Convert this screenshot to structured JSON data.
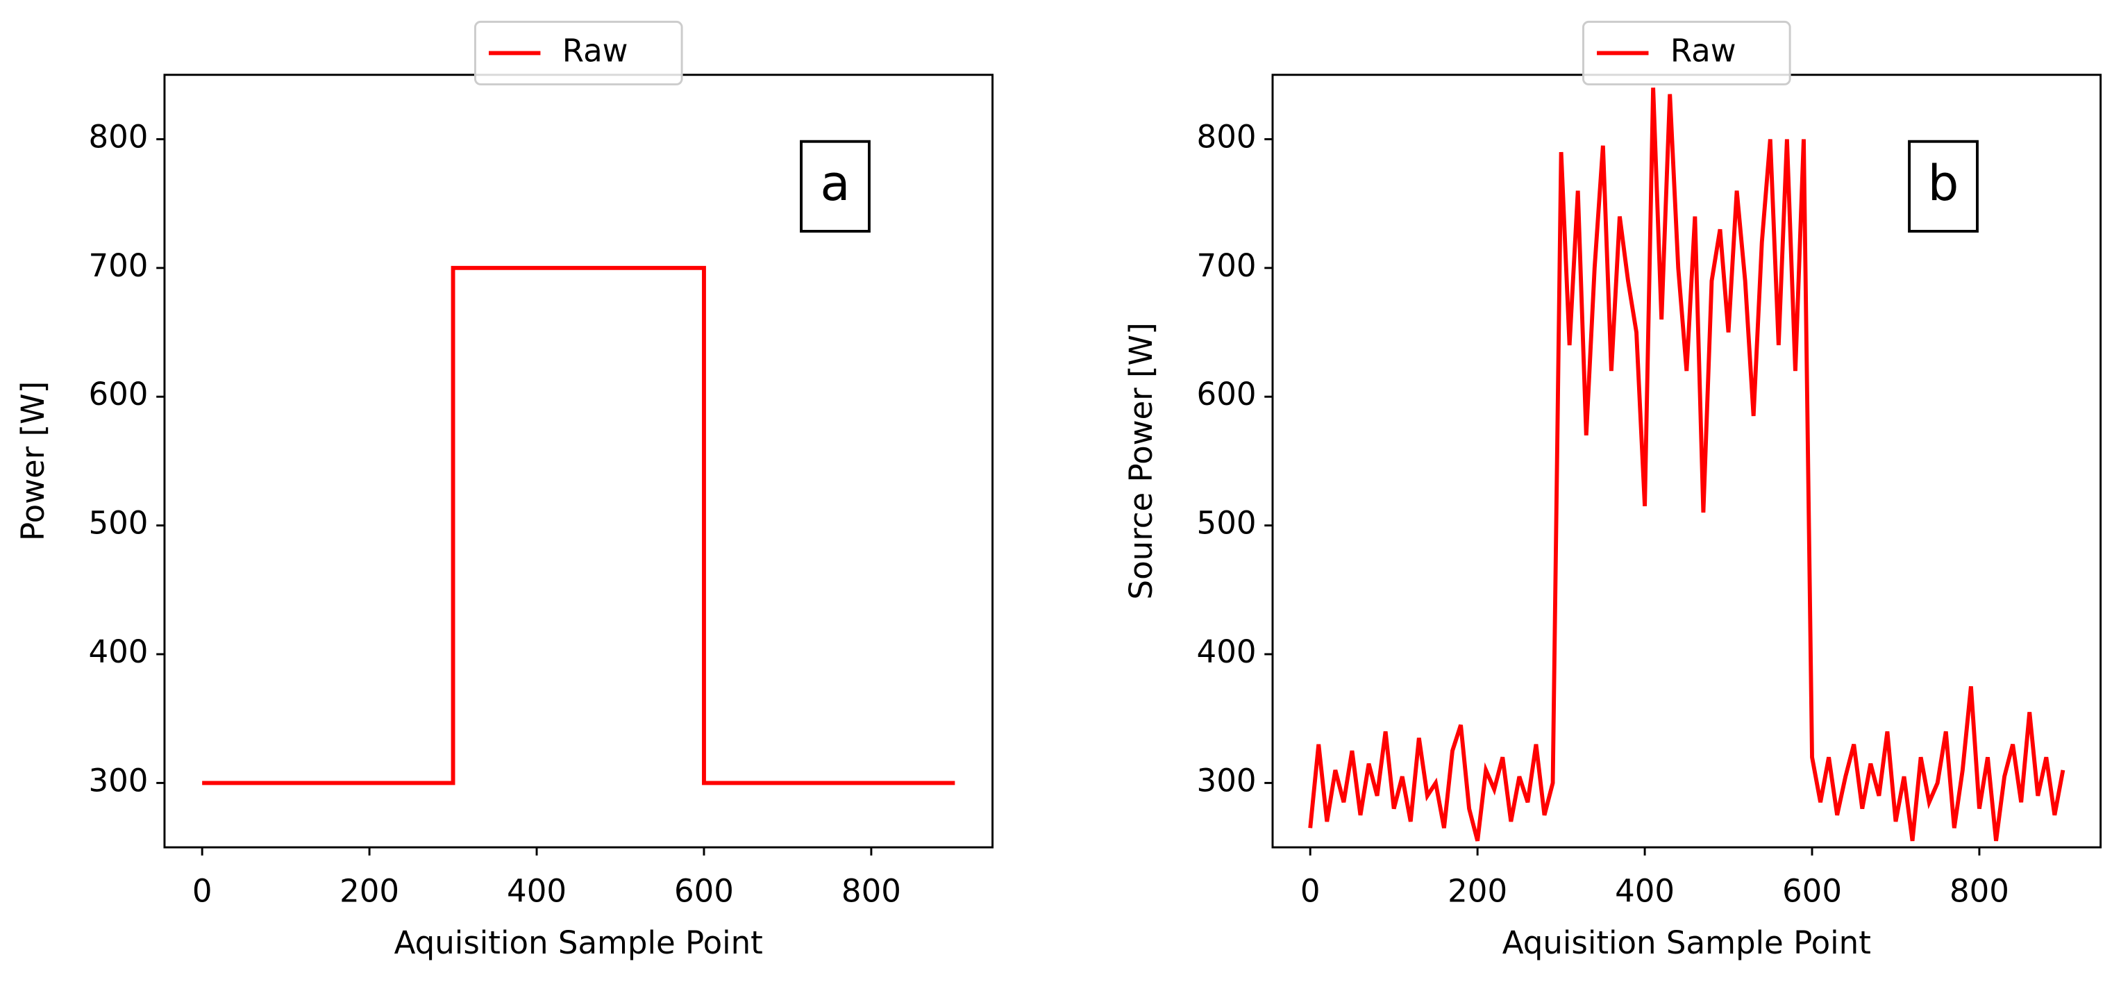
{
  "chart_data": [
    {
      "type": "line",
      "annotation": "a",
      "x_label": "Aquisition Sample Point",
      "y_label": "Power [W]",
      "x": [
        0,
        300,
        300,
        600,
        600,
        900
      ],
      "series": [
        {
          "name": "Raw",
          "color": "#ff0000",
          "values": [
            300,
            300,
            700,
            700,
            300,
            300
          ]
        }
      ],
      "xlim": [
        -45,
        945
      ],
      "xticks": [
        0,
        200,
        400,
        600,
        800
      ],
      "ylim": [
        250,
        850
      ],
      "yticks": [
        300,
        400,
        500,
        600,
        700,
        800
      ],
      "legend": "upper center"
    },
    {
      "type": "line",
      "annotation": "b",
      "x_label": "Aquisition Sample Point",
      "y_label": "Source Power [W]",
      "x": [
        0,
        10,
        20,
        30,
        40,
        50,
        60,
        70,
        80,
        90,
        100,
        110,
        120,
        130,
        140,
        150,
        160,
        170,
        180,
        190,
        200,
        210,
        220,
        230,
        240,
        250,
        260,
        270,
        280,
        290,
        300,
        310,
        320,
        330,
        340,
        350,
        360,
        370,
        380,
        390,
        400,
        410,
        420,
        430,
        440,
        450,
        460,
        470,
        480,
        490,
        500,
        510,
        520,
        530,
        540,
        550,
        560,
        570,
        580,
        590,
        600,
        610,
        620,
        630,
        640,
        650,
        660,
        670,
        680,
        690,
        700,
        710,
        720,
        730,
        740,
        750,
        760,
        770,
        780,
        790,
        800,
        810,
        820,
        830,
        840,
        850,
        860,
        870,
        880,
        890,
        900
      ],
      "series": [
        {
          "name": "Raw",
          "color": "#ff0000",
          "values": [
            265,
            330,
            270,
            310,
            285,
            325,
            275,
            315,
            290,
            340,
            280,
            305,
            270,
            335,
            290,
            300,
            265,
            325,
            345,
            280,
            255,
            310,
            295,
            320,
            270,
            305,
            285,
            330,
            275,
            300,
            790,
            640,
            760,
            570,
            700,
            795,
            620,
            740,
            690,
            650,
            515,
            840,
            660,
            835,
            700,
            620,
            740,
            510,
            690,
            730,
            650,
            760,
            690,
            585,
            720,
            800,
            640,
            800,
            620,
            800,
            320,
            285,
            320,
            275,
            305,
            330,
            280,
            315,
            290,
            340,
            270,
            305,
            255,
            320,
            285,
            300,
            340,
            265,
            310,
            375,
            280,
            320,
            255,
            305,
            330,
            285,
            355,
            290,
            320,
            275,
            310
          ]
        }
      ],
      "xlim": [
        -45,
        945
      ],
      "xticks": [
        0,
        200,
        400,
        600,
        800
      ],
      "ylim": [
        250,
        850
      ],
      "yticks": [
        300,
        400,
        500,
        600,
        700,
        800
      ],
      "legend": "upper center"
    }
  ]
}
